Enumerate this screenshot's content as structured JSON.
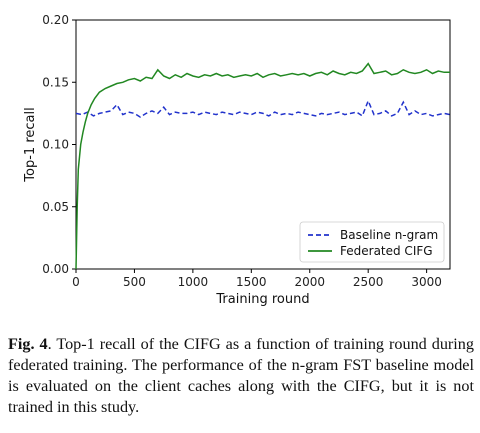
{
  "chart_data": {
    "type": "line",
    "xlabel": "Training round",
    "ylabel": "Top-1 recall",
    "xlim": [
      0,
      3200
    ],
    "ylim": [
      0,
      0.2
    ],
    "xticks": [
      0,
      500,
      1000,
      1500,
      2000,
      2500,
      3000
    ],
    "yticks": [
      0.0,
      0.05,
      0.1,
      0.15,
      0.2
    ],
    "xtick_labels": [
      "0",
      "500",
      "1000",
      "1500",
      "2000",
      "2500",
      "3000"
    ],
    "ytick_labels": [
      "0.00",
      "0.05",
      "0.10",
      "0.15",
      "0.20"
    ],
    "grid": false,
    "legend_position": "bottom-right",
    "series": [
      {
        "name": "Baseline n-gram",
        "style": "dashed",
        "color": "#2233cc",
        "x": [
          0,
          50,
          100,
          150,
          200,
          250,
          300,
          350,
          400,
          450,
          500,
          550,
          600,
          650,
          700,
          750,
          800,
          850,
          900,
          950,
          1000,
          1050,
          1100,
          1150,
          1200,
          1250,
          1300,
          1350,
          1400,
          1450,
          1500,
          1550,
          1600,
          1650,
          1700,
          1750,
          1800,
          1850,
          1900,
          1950,
          2000,
          2050,
          2100,
          2150,
          2200,
          2250,
          2300,
          2350,
          2400,
          2450,
          2500,
          2550,
          2600,
          2650,
          2700,
          2750,
          2800,
          2850,
          2900,
          2950,
          3000,
          3050,
          3100,
          3150,
          3200
        ],
        "y": [
          0.125,
          0.124,
          0.126,
          0.123,
          0.125,
          0.126,
          0.127,
          0.132,
          0.124,
          0.126,
          0.125,
          0.122,
          0.125,
          0.127,
          0.125,
          0.13,
          0.124,
          0.126,
          0.125,
          0.125,
          0.126,
          0.124,
          0.126,
          0.125,
          0.124,
          0.126,
          0.125,
          0.124,
          0.126,
          0.125,
          0.124,
          0.126,
          0.125,
          0.123,
          0.126,
          0.124,
          0.125,
          0.124,
          0.126,
          0.125,
          0.124,
          0.123,
          0.125,
          0.124,
          0.125,
          0.126,
          0.124,
          0.125,
          0.126,
          0.123,
          0.135,
          0.124,
          0.125,
          0.127,
          0.123,
          0.125,
          0.134,
          0.124,
          0.127,
          0.124,
          0.125,
          0.123,
          0.124,
          0.125,
          0.124
        ]
      },
      {
        "name": "Federated CIFG",
        "style": "solid",
        "color": "#228822",
        "x": [
          0,
          10,
          20,
          40,
          60,
          80,
          100,
          130,
          160,
          200,
          250,
          300,
          350,
          400,
          450,
          500,
          550,
          600,
          650,
          700,
          750,
          800,
          850,
          900,
          950,
          1000,
          1050,
          1100,
          1150,
          1200,
          1250,
          1300,
          1350,
          1400,
          1450,
          1500,
          1550,
          1600,
          1650,
          1700,
          1750,
          1800,
          1850,
          1900,
          1950,
          2000,
          2050,
          2100,
          2150,
          2200,
          2250,
          2300,
          2350,
          2400,
          2450,
          2500,
          2550,
          2600,
          2650,
          2700,
          2750,
          2800,
          2850,
          2900,
          2950,
          3000,
          3050,
          3100,
          3150,
          3200
        ],
        "y": [
          0.0,
          0.05,
          0.08,
          0.1,
          0.11,
          0.118,
          0.125,
          0.132,
          0.137,
          0.142,
          0.145,
          0.147,
          0.149,
          0.15,
          0.152,
          0.153,
          0.151,
          0.154,
          0.153,
          0.16,
          0.155,
          0.153,
          0.156,
          0.154,
          0.157,
          0.155,
          0.154,
          0.156,
          0.155,
          0.157,
          0.155,
          0.156,
          0.154,
          0.155,
          0.156,
          0.155,
          0.157,
          0.154,
          0.156,
          0.157,
          0.155,
          0.156,
          0.157,
          0.156,
          0.157,
          0.155,
          0.157,
          0.158,
          0.156,
          0.159,
          0.157,
          0.156,
          0.158,
          0.157,
          0.159,
          0.165,
          0.157,
          0.158,
          0.159,
          0.156,
          0.157,
          0.16,
          0.158,
          0.157,
          0.158,
          0.16,
          0.157,
          0.159,
          0.158,
          0.158
        ]
      }
    ]
  },
  "caption": {
    "label": "Fig. 4",
    "text": ". Top-1 recall of the CIFG as a function of training round during federated training. The performance of the n-gram FST baseline model is evaluated on the client caches along with the CIFG, but it is not trained in this study."
  }
}
